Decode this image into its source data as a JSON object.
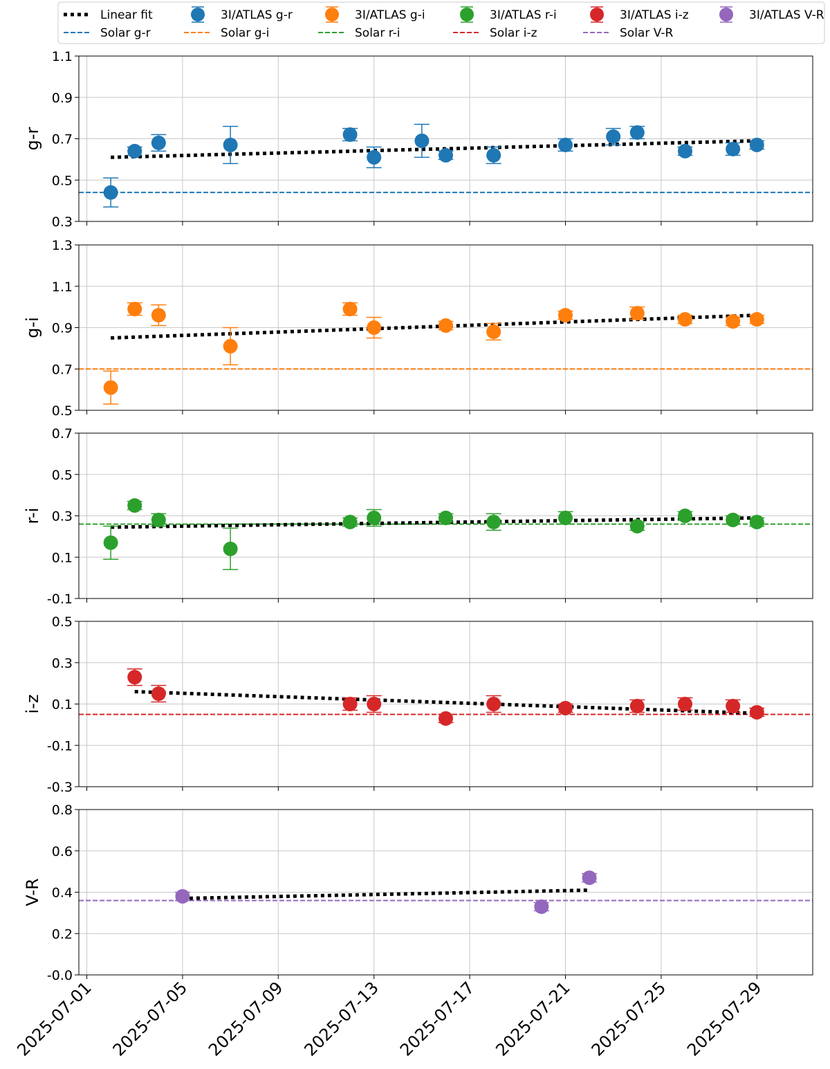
{
  "colors": {
    "g-r": "#1f77b4",
    "g-i": "#ff7f0e",
    "r-i": "#2ca02c",
    "i-z": "#d62728",
    "V-R": "#9467bd",
    "fit": "#000000",
    "grid": "#c8c8c8"
  },
  "legend": {
    "placement": "top",
    "entries": [
      {
        "label": "Linear fit",
        "kind": "fit",
        "color_key": "fit"
      },
      {
        "label": "Solar g-r",
        "kind": "solar",
        "color_key": "g-r"
      },
      {
        "label": "3I/ATLAS g-r",
        "kind": "point",
        "color_key": "g-r"
      },
      {
        "label": "Solar g-i",
        "kind": "solar",
        "color_key": "g-i"
      },
      {
        "label": "3I/ATLAS g-i",
        "kind": "point",
        "color_key": "g-i"
      },
      {
        "label": "Solar r-i",
        "kind": "solar",
        "color_key": "r-i"
      },
      {
        "label": "3I/ATLAS r-i",
        "kind": "point",
        "color_key": "r-i"
      },
      {
        "label": "Solar i-z",
        "kind": "solar",
        "color_key": "i-z"
      },
      {
        "label": "3I/ATLAS i-z",
        "kind": "point",
        "color_key": "i-z"
      },
      {
        "label": "Solar V-R",
        "kind": "solar",
        "color_key": "V-R"
      },
      {
        "label": "3I/ATLAS V-R",
        "kind": "point",
        "color_key": "V-R"
      }
    ]
  },
  "chart_data": {
    "type": "scatter",
    "shared_x": true,
    "x_type": "date",
    "xlim": [
      "2025-06-30T16:00",
      "2025-07-31T08:00"
    ],
    "x_ticks": [
      "2025-07-01",
      "2025-07-05",
      "2025-07-09",
      "2025-07-13",
      "2025-07-17",
      "2025-07-21",
      "2025-07-25",
      "2025-07-29"
    ],
    "grid": true,
    "panels": [
      {
        "ylabel": "g-r",
        "color_key": "g-r",
        "ylim": [
          0.3,
          1.1
        ],
        "yticks": [
          "0.3",
          "0.5",
          "0.7",
          "0.9",
          "1.1"
        ],
        "solar": 0.44,
        "fit": [
          [
            "2025-07-02",
            0.61
          ],
          [
            "2025-07-29",
            0.69
          ]
        ],
        "points": [
          {
            "x": "2025-07-02",
            "y": 0.44,
            "err": 0.07
          },
          {
            "x": "2025-07-03",
            "y": 0.64,
            "err": 0.02
          },
          {
            "x": "2025-07-04",
            "y": 0.68,
            "err": 0.04
          },
          {
            "x": "2025-07-07",
            "y": 0.67,
            "err": 0.09
          },
          {
            "x": "2025-07-12",
            "y": 0.72,
            "err": 0.03
          },
          {
            "x": "2025-07-13",
            "y": 0.61,
            "err": 0.05
          },
          {
            "x": "2025-07-15",
            "y": 0.69,
            "err": 0.08
          },
          {
            "x": "2025-07-16",
            "y": 0.62,
            "err": 0.02
          },
          {
            "x": "2025-07-18",
            "y": 0.62,
            "err": 0.04
          },
          {
            "x": "2025-07-21",
            "y": 0.67,
            "err": 0.03
          },
          {
            "x": "2025-07-23",
            "y": 0.71,
            "err": 0.04
          },
          {
            "x": "2025-07-24",
            "y": 0.73,
            "err": 0.03
          },
          {
            "x": "2025-07-26",
            "y": 0.64,
            "err": 0.02
          },
          {
            "x": "2025-07-28",
            "y": 0.65,
            "err": 0.03
          },
          {
            "x": "2025-07-29",
            "y": 0.67,
            "err": 0.02
          }
        ]
      },
      {
        "ylabel": "g-i",
        "color_key": "g-i",
        "ylim": [
          0.5,
          1.3
        ],
        "yticks": [
          "0.5",
          "0.7",
          "0.9",
          "1.1",
          "1.3"
        ],
        "solar": 0.7,
        "fit": [
          [
            "2025-07-02",
            0.85
          ],
          [
            "2025-07-29",
            0.96
          ]
        ],
        "points": [
          {
            "x": "2025-07-02",
            "y": 0.61,
            "err": 0.08
          },
          {
            "x": "2025-07-03",
            "y": 0.99,
            "err": 0.03
          },
          {
            "x": "2025-07-04",
            "y": 0.96,
            "err": 0.05
          },
          {
            "x": "2025-07-07",
            "y": 0.81,
            "err": 0.09
          },
          {
            "x": "2025-07-12",
            "y": 0.99,
            "err": 0.03
          },
          {
            "x": "2025-07-13",
            "y": 0.9,
            "err": 0.05
          },
          {
            "x": "2025-07-16",
            "y": 0.91,
            "err": 0.02
          },
          {
            "x": "2025-07-18",
            "y": 0.88,
            "err": 0.04
          },
          {
            "x": "2025-07-21",
            "y": 0.96,
            "err": 0.02
          },
          {
            "x": "2025-07-24",
            "y": 0.97,
            "err": 0.03
          },
          {
            "x": "2025-07-26",
            "y": 0.94,
            "err": 0.02
          },
          {
            "x": "2025-07-28",
            "y": 0.93,
            "err": 0.02
          },
          {
            "x": "2025-07-29",
            "y": 0.94,
            "err": 0.02
          }
        ]
      },
      {
        "ylabel": "r-i",
        "color_key": "r-i",
        "ylim": [
          -0.1,
          0.7
        ],
        "yticks": [
          "-0.1",
          "0.1",
          "0.3",
          "0.5",
          "0.7"
        ],
        "solar": 0.26,
        "fit": [
          [
            "2025-07-02",
            0.245
          ],
          [
            "2025-07-29",
            0.29
          ]
        ],
        "points": [
          {
            "x": "2025-07-02",
            "y": 0.17,
            "err": 0.08
          },
          {
            "x": "2025-07-03",
            "y": 0.35,
            "err": 0.02
          },
          {
            "x": "2025-07-04",
            "y": 0.28,
            "err": 0.03
          },
          {
            "x": "2025-07-07",
            "y": 0.14,
            "err": 0.1
          },
          {
            "x": "2025-07-12",
            "y": 0.27,
            "err": 0.02
          },
          {
            "x": "2025-07-13",
            "y": 0.29,
            "err": 0.04
          },
          {
            "x": "2025-07-16",
            "y": 0.29,
            "err": 0.02
          },
          {
            "x": "2025-07-18",
            "y": 0.27,
            "err": 0.04
          },
          {
            "x": "2025-07-21",
            "y": 0.29,
            "err": 0.03
          },
          {
            "x": "2025-07-24",
            "y": 0.25,
            "err": 0.02
          },
          {
            "x": "2025-07-26",
            "y": 0.3,
            "err": 0.02
          },
          {
            "x": "2025-07-28",
            "y": 0.28,
            "err": 0.02
          },
          {
            "x": "2025-07-29",
            "y": 0.27,
            "err": 0.02
          }
        ]
      },
      {
        "ylabel": "i-z",
        "color_key": "i-z",
        "ylim": [
          -0.3,
          0.5
        ],
        "yticks": [
          "-0.3",
          "-0.1",
          "0.1",
          "0.3",
          "0.5"
        ],
        "solar": 0.05,
        "fit": [
          [
            "2025-07-03",
            0.16
          ],
          [
            "2025-07-29",
            0.055
          ]
        ],
        "points": [
          {
            "x": "2025-07-03",
            "y": 0.23,
            "err": 0.04
          },
          {
            "x": "2025-07-04",
            "y": 0.15,
            "err": 0.04
          },
          {
            "x": "2025-07-12",
            "y": 0.1,
            "err": 0.03
          },
          {
            "x": "2025-07-13",
            "y": 0.1,
            "err": 0.04
          },
          {
            "x": "2025-07-16",
            "y": 0.03,
            "err": 0.02
          },
          {
            "x": "2025-07-18",
            "y": 0.1,
            "err": 0.04
          },
          {
            "x": "2025-07-21",
            "y": 0.08,
            "err": 0.02
          },
          {
            "x": "2025-07-24",
            "y": 0.09,
            "err": 0.03
          },
          {
            "x": "2025-07-26",
            "y": 0.1,
            "err": 0.03
          },
          {
            "x": "2025-07-28",
            "y": 0.09,
            "err": 0.03
          },
          {
            "x": "2025-07-29",
            "y": 0.06,
            "err": 0.02
          }
        ]
      },
      {
        "ylabel": "V-R",
        "color_key": "V-R",
        "ylim": [
          0.0,
          0.8
        ],
        "yticks": [
          "-0.0",
          "0.2",
          "0.4",
          "0.6",
          "0.8"
        ],
        "solar": 0.36,
        "fit": [
          [
            "2025-07-05",
            0.37
          ],
          [
            "2025-07-22",
            0.41
          ]
        ],
        "points": [
          {
            "x": "2025-07-05",
            "y": 0.38,
            "err": 0.02
          },
          {
            "x": "2025-07-20",
            "y": 0.33,
            "err": 0.02
          },
          {
            "x": "2025-07-22",
            "y": 0.47,
            "err": 0.02
          }
        ]
      }
    ]
  }
}
